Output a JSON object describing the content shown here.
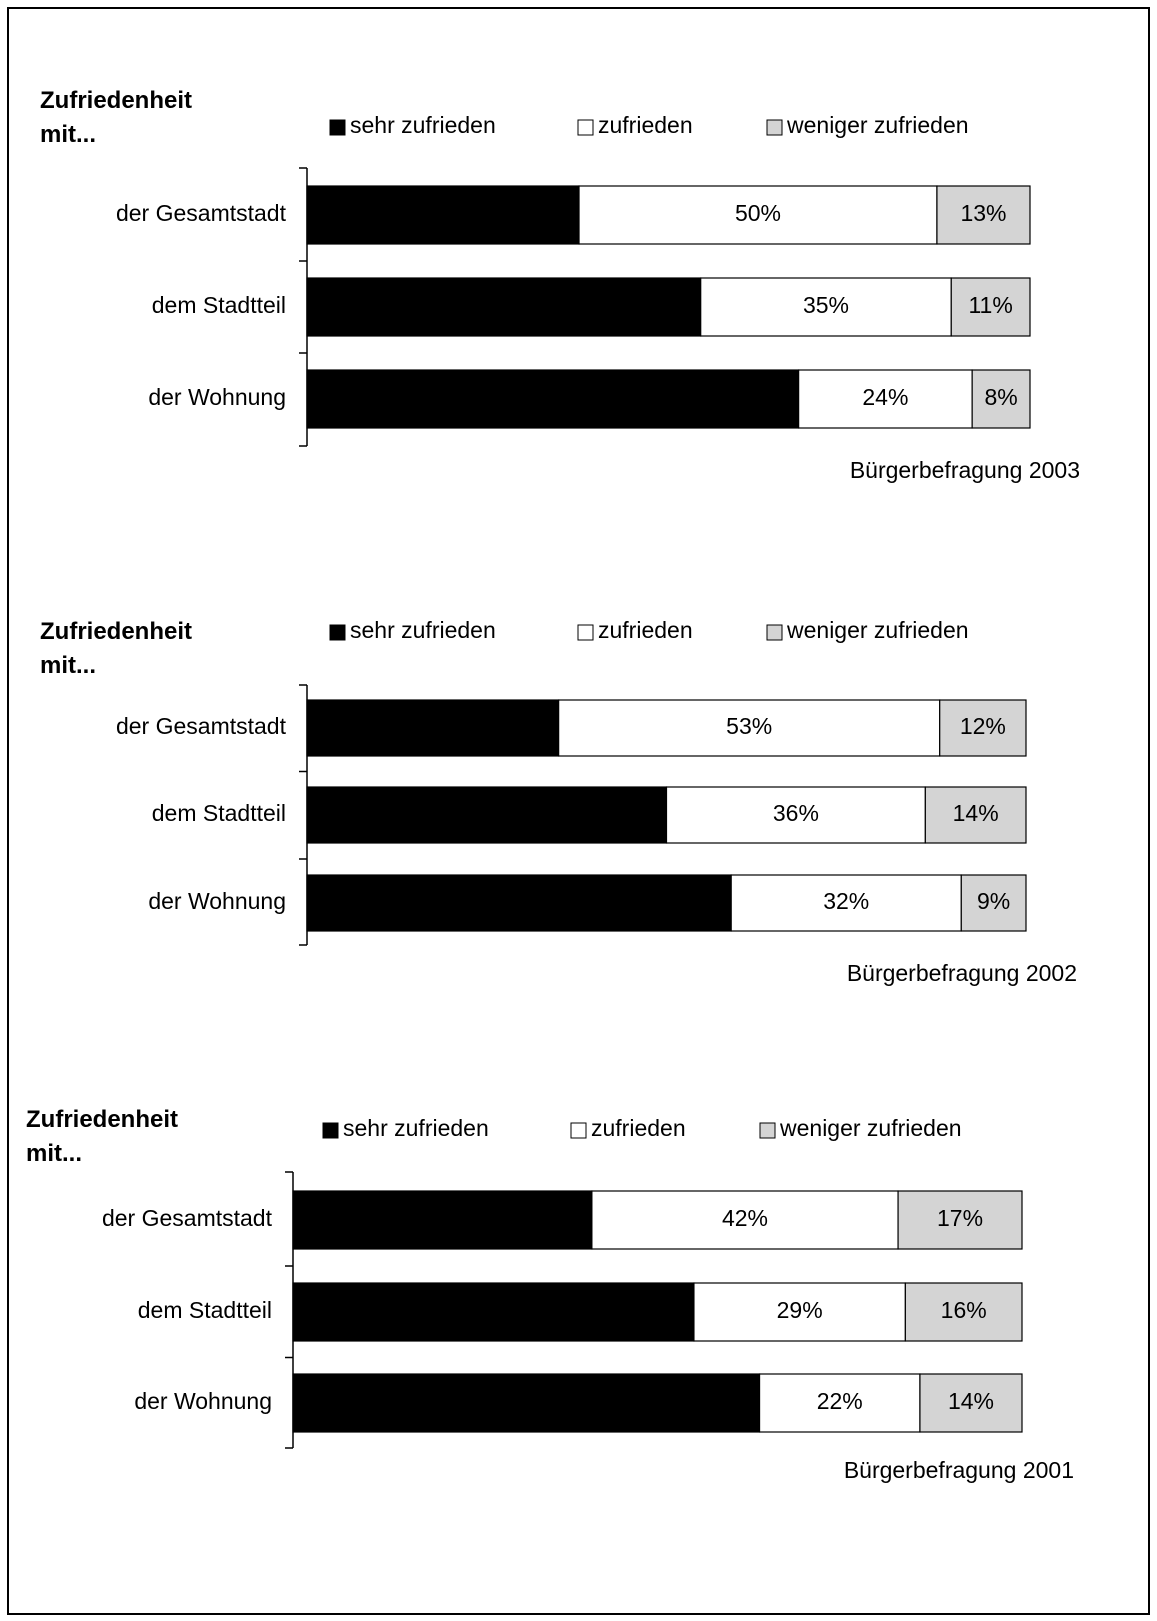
{
  "chart_data": [
    {
      "type": "stacked-bar",
      "title": "Zufriedenheit mit...",
      "annotation": "Bürgerbefragung 2003",
      "categories": [
        "der Gesamtstadt",
        "dem Stadtteil",
        "der Wohnung"
      ],
      "series": [
        {
          "name": "sehr zufrieden",
          "color": "#000000",
          "values": [
            38,
            55,
            68
          ],
          "value_labels": [
            "38%",
            "55%",
            "68%"
          ]
        },
        {
          "name": "zufrieden",
          "color": "#ffffff",
          "values": [
            50,
            35,
            24
          ],
          "value_labels": [
            "50%",
            "35%",
            "24%"
          ]
        },
        {
          "name": "weniger zufrieden",
          "color": "#d4d4d4",
          "values": [
            13,
            11,
            8
          ],
          "value_labels": [
            "13%",
            "11%",
            "8%"
          ]
        }
      ]
    },
    {
      "type": "stacked-bar",
      "title": "Zufriedenheit mit...",
      "annotation": "Bürgerbefragung 2002",
      "categories": [
        "der Gesamtstadt",
        "dem Stadtteil",
        "der Wohnung"
      ],
      "series": [
        {
          "name": "sehr zufrieden",
          "color": "#000000",
          "values": [
            35,
            50,
            59
          ],
          "value_labels": [
            "35%",
            "50%",
            "59%"
          ]
        },
        {
          "name": "zufrieden",
          "color": "#ffffff",
          "values": [
            53,
            36,
            32
          ],
          "value_labels": [
            "53%",
            "36%",
            "32%"
          ]
        },
        {
          "name": "weniger zufrieden",
          "color": "#d4d4d4",
          "values": [
            12,
            14,
            9
          ],
          "value_labels": [
            "12%",
            "14%",
            "9%"
          ]
        }
      ]
    },
    {
      "type": "stacked-bar",
      "title": "Zufriedenheit mit...",
      "annotation": "Bürgerbefragung 2001",
      "categories": [
        "der Gesamtstadt",
        "dem Stadtteil",
        "der Wohnung"
      ],
      "series": [
        {
          "name": "sehr zufrieden",
          "color": "#000000",
          "values": [
            41,
            55,
            64
          ],
          "value_labels": [
            "41%",
            "55%",
            "64%"
          ]
        },
        {
          "name": "zufrieden",
          "color": "#ffffff",
          "values": [
            42,
            29,
            22
          ],
          "value_labels": [
            "42%",
            "29%",
            "22%"
          ]
        },
        {
          "name": "weniger zufrieden",
          "color": "#d4d4d4",
          "values": [
            17,
            16,
            14
          ],
          "value_labels": [
            "17%",
            "16%",
            "14%"
          ]
        }
      ]
    }
  ]
}
